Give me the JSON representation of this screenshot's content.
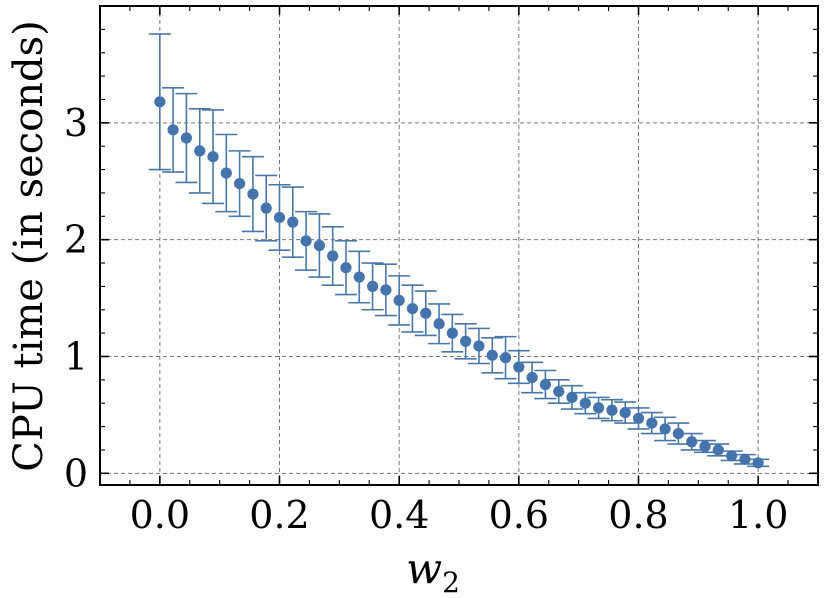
{
  "chart_data": {
    "type": "scatter",
    "title": "",
    "xlabel_main": "w",
    "xlabel_sub": "2",
    "ylabel": "CPU time (in seconds)",
    "xlim": [
      -0.1,
      1.1
    ],
    "ylim": [
      -0.1,
      4.0
    ],
    "xticks": [
      "0.0",
      "0.2",
      "0.4",
      "0.6",
      "0.8",
      "1.0"
    ],
    "yticks": [
      "0",
      "1",
      "2",
      "3"
    ],
    "grid": true,
    "error_bars": true,
    "colors": {
      "marker": "#4574ad",
      "errorbar": "#4a77aa"
    },
    "x": [
      0.0,
      0.0222,
      0.0444,
      0.0667,
      0.0889,
      0.1111,
      0.1333,
      0.1556,
      0.1778,
      0.2,
      0.2222,
      0.2444,
      0.2667,
      0.2889,
      0.3111,
      0.3333,
      0.3556,
      0.3778,
      0.4,
      0.4222,
      0.4444,
      0.4667,
      0.4889,
      0.5111,
      0.5333,
      0.5556,
      0.5778,
      0.6,
      0.6222,
      0.6444,
      0.6667,
      0.6889,
      0.7111,
      0.7333,
      0.7556,
      0.7778,
      0.8,
      0.8222,
      0.8444,
      0.8667,
      0.8889,
      0.9111,
      0.9333,
      0.9556,
      0.9778,
      1.0
    ],
    "y": [
      3.18,
      2.94,
      2.87,
      2.76,
      2.71,
      2.57,
      2.48,
      2.39,
      2.27,
      2.19,
      2.15,
      1.99,
      1.95,
      1.86,
      1.76,
      1.68,
      1.6,
      1.57,
      1.48,
      1.41,
      1.37,
      1.28,
      1.2,
      1.13,
      1.09,
      1.01,
      0.99,
      0.91,
      0.82,
      0.76,
      0.7,
      0.65,
      0.6,
      0.56,
      0.54,
      0.52,
      0.47,
      0.43,
      0.38,
      0.34,
      0.27,
      0.23,
      0.2,
      0.15,
      0.12,
      0.09
    ],
    "yerr": [
      0.58,
      0.36,
      0.38,
      0.36,
      0.4,
      0.33,
      0.28,
      0.32,
      0.28,
      0.28,
      0.3,
      0.25,
      0.27,
      0.25,
      0.23,
      0.22,
      0.2,
      0.22,
      0.21,
      0.2,
      0.19,
      0.17,
      0.16,
      0.15,
      0.15,
      0.15,
      0.18,
      0.14,
      0.13,
      0.12,
      0.1,
      0.1,
      0.09,
      0.09,
      0.09,
      0.09,
      0.09,
      0.09,
      0.1,
      0.09,
      0.07,
      0.05,
      0.05,
      0.04,
      0.04,
      0.03
    ]
  }
}
